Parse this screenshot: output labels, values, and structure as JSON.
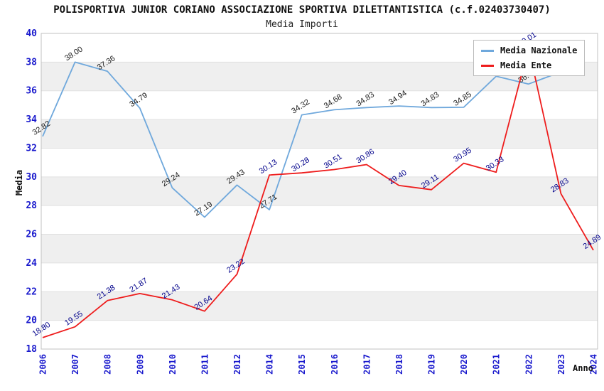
{
  "chart_data": {
    "type": "line",
    "title": "POLISPORTIVA JUNIOR CORIANO ASSOCIAZIONE SPORTIVA DILETTANTISTICA (c.f.02403730407)",
    "subtitle": "Media Importi",
    "xlabel": "Anno",
    "ylabel": "Media",
    "ylim": [
      18,
      40
    ],
    "ytick_step": 2,
    "grid": "horizontal-bands",
    "legend_position": "top-right",
    "categories": [
      "2006",
      "2007",
      "2008",
      "2009",
      "2010",
      "2011",
      "2012",
      "2014",
      "2015",
      "2016",
      "2017",
      "2018",
      "2019",
      "2020",
      "2021",
      "2022",
      "2023",
      "2024"
    ],
    "series": [
      {
        "name": "Media Nazionale",
        "color": "#6fa8dc",
        "label_color": "#1a1a1a",
        "values": [
          32.82,
          38.0,
          37.36,
          34.79,
          29.24,
          27.19,
          29.43,
          27.71,
          34.32,
          34.68,
          34.83,
          34.94,
          34.83,
          34.85,
          37.01,
          36.47,
          37.32,
          null
        ]
      },
      {
        "name": "Media Ente",
        "color": "#ee1c1c",
        "label_color": "#00008b",
        "values": [
          18.8,
          19.55,
          21.38,
          21.87,
          21.43,
          20.64,
          23.22,
          30.13,
          30.28,
          30.51,
          30.86,
          29.4,
          29.11,
          30.95,
          30.33,
          39.01,
          28.83,
          24.89
        ]
      }
    ],
    "colors": {
      "tick_label": "#1a1acd",
      "band": "#efefef",
      "gridline": "#e0e0e0",
      "plot_border": "#c0c0c0"
    }
  }
}
